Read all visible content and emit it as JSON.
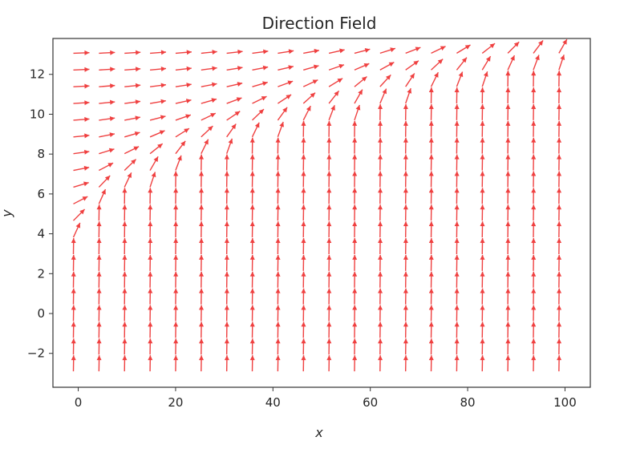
{
  "chart_data": {
    "type": "quiver",
    "title": "Direction Field",
    "xlabel": "x",
    "ylabel": "y",
    "xlim": [
      -5.2,
      105.2
    ],
    "ylim": [
      -3.7,
      13.8
    ],
    "xticks": [
      0,
      20,
      40,
      60,
      80,
      100
    ],
    "yticks": [
      -2,
      0,
      2,
      4,
      6,
      8,
      10,
      12
    ],
    "xtick_labels": [
      "0",
      "20",
      "40",
      "60",
      "80",
      "100"
    ],
    "ytick_labels": [
      "−2",
      "0",
      "2",
      "4",
      "6",
      "8",
      "10",
      "12"
    ],
    "grid": false,
    "arrow_color": "#ef4040",
    "field": {
      "x_start": -1,
      "x_step": 5.25,
      "x_count": 20,
      "y_start": -2.9,
      "y_step": 0.84,
      "y_count": 20,
      "pivot": "tail",
      "description": "normalized direction arrows; slope steep (near vertical) below y = x^(1/2)-shaped curve, near horizontal above it"
    }
  }
}
